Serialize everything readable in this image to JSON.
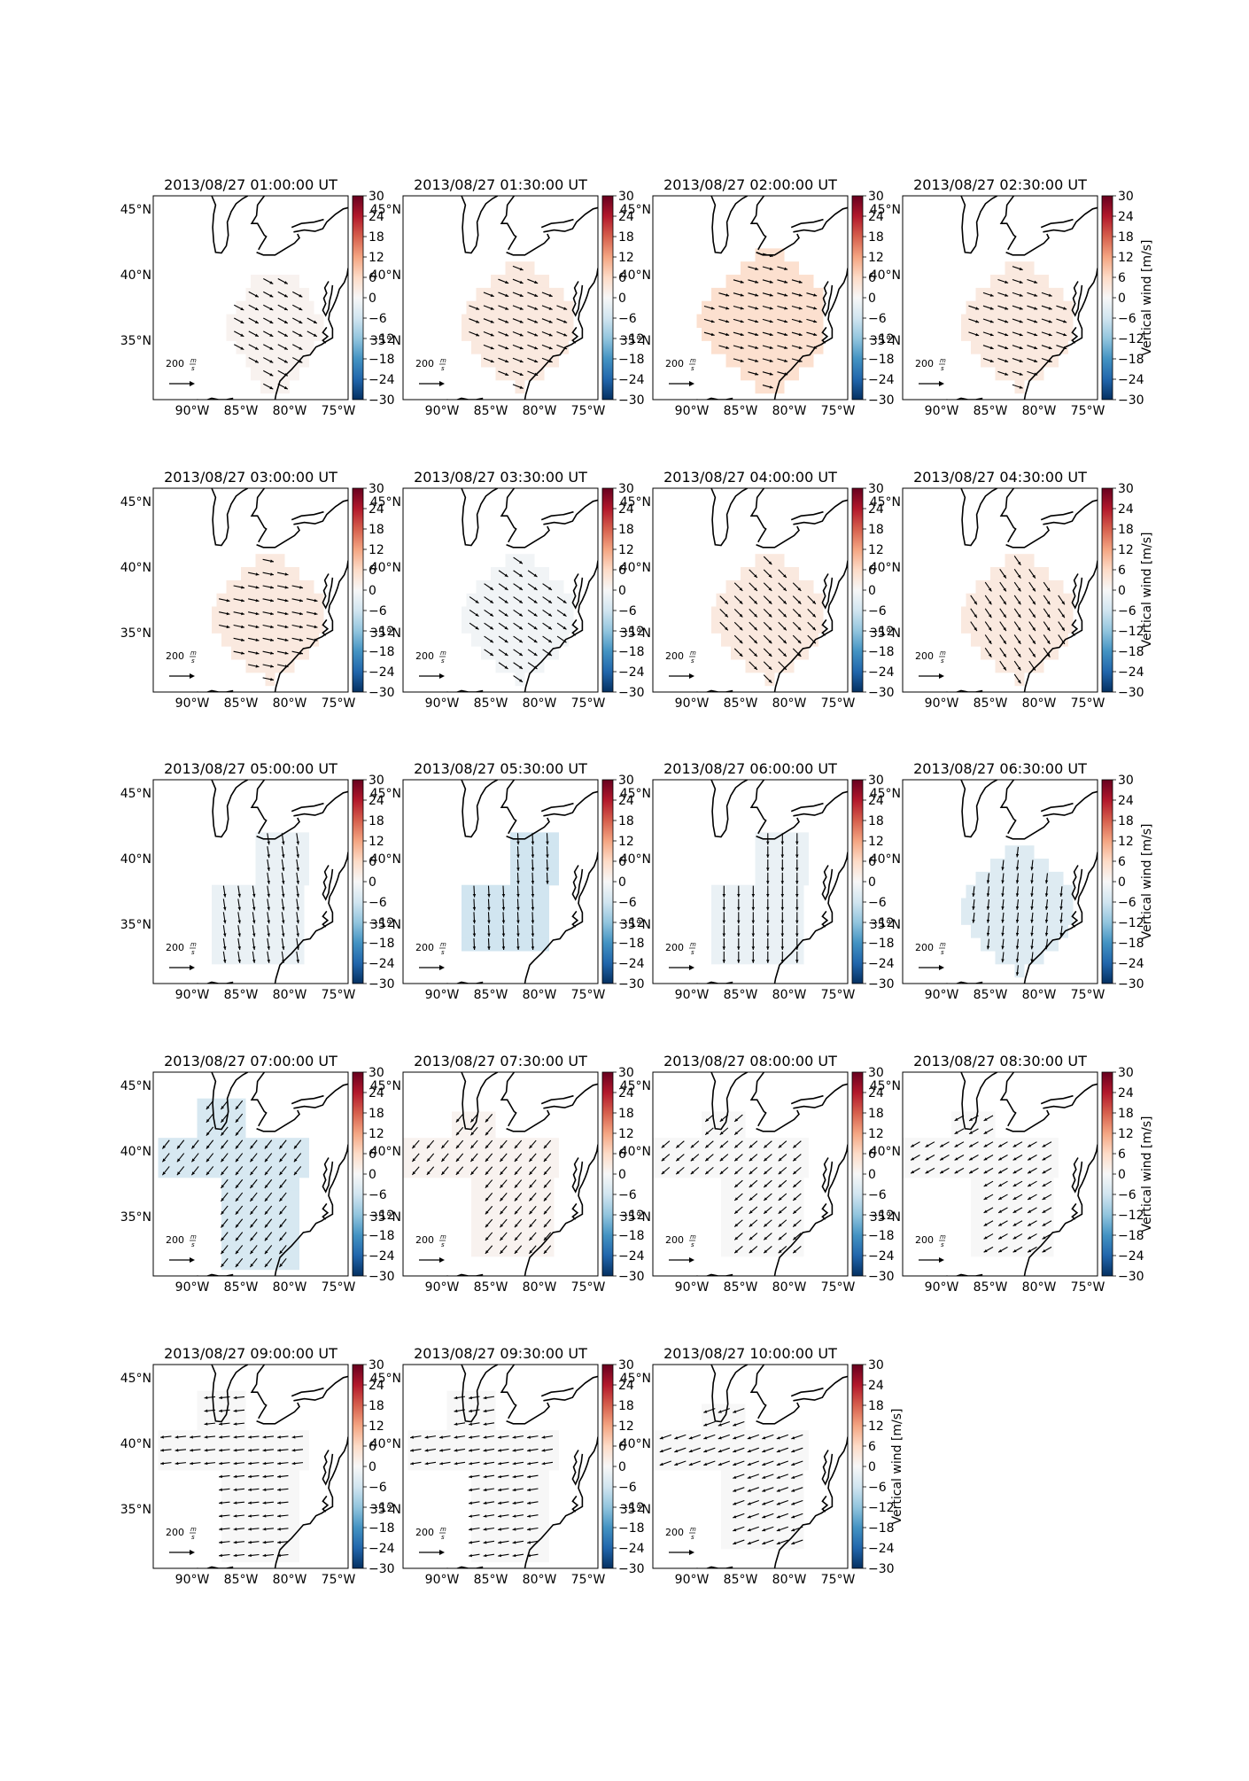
{
  "figure": {
    "colorbar": {
      "label": "Vertical wind [m/s]",
      "ticks": [
        "30",
        "24",
        "18",
        "12",
        "6",
        "0",
        "−6",
        "−12",
        "−18",
        "−24",
        "−30"
      ],
      "range": [
        -30,
        30
      ],
      "colormap": "RdBu_r"
    },
    "scale_arrow": {
      "value": "200",
      "unit": "m/s"
    },
    "lat_ticks": [
      "45°N",
      "40°N",
      "35°N"
    ],
    "lon_ticks": [
      "90°W",
      "85°W",
      "80°W",
      "75°W"
    ],
    "colors": {
      "positive": "#67001f",
      "negative": "#053061",
      "neutral": "#f7f7f7",
      "coast": "#000000"
    }
  },
  "chart_data": {
    "type": "heatmap",
    "description_of_panels": "quiver maps of horizontal wind over eastern US, shaded by vertical wind",
    "panels": [
      {
        "title": "2013/08/27 01:00:00 UT",
        "vertical_wind": 1,
        "u": 0.85,
        "v": -0.45,
        "region": "small_east"
      },
      {
        "title": "2013/08/27 01:30:00 UT",
        "vertical_wind": 3,
        "u": 0.9,
        "v": -0.35,
        "region": "round"
      },
      {
        "title": "2013/08/27 02:00:00 UT",
        "vertical_wind": 5,
        "u": 0.9,
        "v": -0.25,
        "region": "round_big"
      },
      {
        "title": "2013/08/27 02:30:00 UT",
        "vertical_wind": 3,
        "u": 0.9,
        "v": -0.3,
        "region": "round"
      },
      {
        "title": "2013/08/27 03:00:00 UT",
        "vertical_wind": 3,
        "u": 0.95,
        "v": -0.2,
        "region": "round"
      },
      {
        "title": "2013/08/27 03:30:00 UT",
        "vertical_wind": -1,
        "u": 0.8,
        "v": -0.55,
        "region": "round"
      },
      {
        "title": "2013/08/27 04:00:00 UT",
        "vertical_wind": 3,
        "u": 0.7,
        "v": -0.7,
        "region": "round"
      },
      {
        "title": "2013/08/27 04:30:00 UT",
        "vertical_wind": 3,
        "u": 0.55,
        "v": -0.8,
        "region": "round"
      },
      {
        "title": "2013/08/27 05:00:00 UT",
        "vertical_wind": -2,
        "u": 0.15,
        "v": -1.0,
        "region": "tall"
      },
      {
        "title": "2013/08/27 05:30:00 UT",
        "vertical_wind": -6,
        "u": 0.05,
        "v": -1.0,
        "region": "tall_small"
      },
      {
        "title": "2013/08/27 06:00:00 UT",
        "vertical_wind": -2,
        "u": 0.0,
        "v": -1.0,
        "region": "tall"
      },
      {
        "title": "2013/08/27 06:30:00 UT",
        "vertical_wind": -4,
        "u": -0.1,
        "v": -0.9,
        "region": "round"
      },
      {
        "title": "2013/08/27 07:00:00 UT",
        "vertical_wind": -5,
        "u": -0.6,
        "v": -0.75,
        "region": "wide"
      },
      {
        "title": "2013/08/27 07:30:00 UT",
        "vertical_wind": 1,
        "u": -0.6,
        "v": -0.7,
        "region": "wide_right"
      },
      {
        "title": "2013/08/27 08:00:00 UT",
        "vertical_wind": 0,
        "u": -0.7,
        "v": -0.6,
        "region": "wide_right"
      },
      {
        "title": "2013/08/27 08:30:00 UT",
        "vertical_wind": 0,
        "u": -0.8,
        "v": -0.45,
        "region": "wide_right"
      },
      {
        "title": "2013/08/27 09:00:00 UT",
        "vertical_wind": 0,
        "u": -0.95,
        "v": -0.1,
        "region": "wide"
      },
      {
        "title": "2013/08/27 09:30:00 UT",
        "vertical_wind": 0,
        "u": -0.95,
        "v": -0.15,
        "region": "wide"
      },
      {
        "title": "2013/08/27 10:00:00 UT",
        "vertical_wind": 0,
        "u": -1.0,
        "v": -0.35,
        "region": "wide_right"
      }
    ]
  }
}
